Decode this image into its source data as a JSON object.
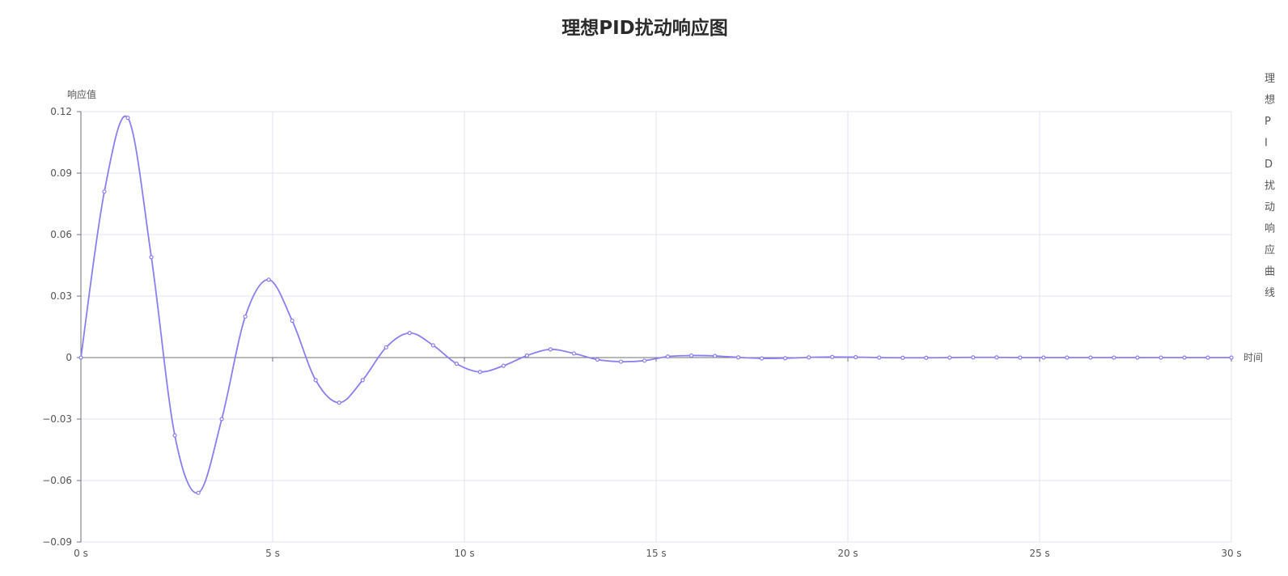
{
  "chart_data": {
    "type": "line",
    "title": "理想PID扰动响应图",
    "xlabel": "时间",
    "ylabel": "响应值",
    "xlim": [
      0,
      30
    ],
    "ylim": [
      -0.09,
      0.12
    ],
    "x_unit": "s",
    "x_ticks": [
      0,
      5,
      10,
      15,
      20,
      25,
      30
    ],
    "y_ticks": [
      0.12,
      0.09,
      0.06,
      0.03,
      0,
      -0.03,
      -0.06,
      -0.09
    ],
    "grid": true,
    "legend_position": "right",
    "legend_text": "理想PID扰动响应曲线",
    "series": [
      {
        "name": "",
        "color": "#8a7ff0",
        "x": [
          0,
          0.612,
          1.224,
          1.837,
          2.449,
          3.061,
          3.673,
          4.286,
          4.898,
          5.51,
          6.122,
          6.735,
          7.347,
          7.959,
          8.571,
          9.184,
          9.796,
          10.408,
          11.02,
          11.633,
          12.245,
          12.857,
          13.469,
          14.082,
          14.694,
          15.306,
          15.918,
          16.531,
          17.143,
          17.755,
          18.367,
          18.98,
          19.592,
          20.204,
          20.816,
          21.429,
          22.041,
          22.653,
          23.265,
          23.878,
          24.49,
          25.102,
          25.714,
          26.327,
          26.939,
          27.551,
          28.163,
          28.776,
          29.388,
          30
        ],
        "y": [
          0,
          0.081,
          0.117,
          0.049,
          -0.038,
          -0.066,
          -0.03,
          0.02,
          0.038,
          0.018,
          -0.011,
          -0.022,
          -0.011,
          0.005,
          0.012,
          0.006,
          -0.003,
          -0.007,
          -0.004,
          0.001,
          0.004,
          0.002,
          -0.001,
          -0.002,
          -0.0015,
          0.0005,
          0.001,
          0.0008,
          0.0001,
          -0.0004,
          -0.0003,
          0.0001,
          0.0003,
          0.0002,
          0,
          -0.0001,
          -0.0001,
          0,
          0.0001,
          0.0001,
          0,
          0,
          0,
          0,
          0,
          0,
          0,
          0,
          0,
          0
        ]
      }
    ]
  }
}
